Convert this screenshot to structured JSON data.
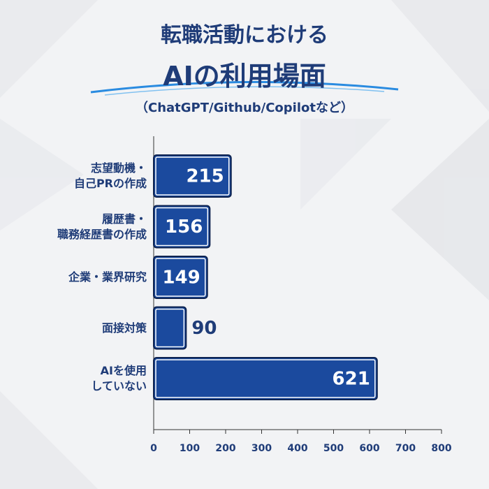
{
  "chart_data": {
    "type": "bar",
    "orientation": "horizontal",
    "title": "転職活動における\nAIの利用場面",
    "subtitle": "（ChatGPT/Github/Copilotなど）",
    "categories": [
      "志望動機・\n自己PRの作成",
      "履歴書・\n職務経歴書の作成",
      "企業・業界研究",
      "面接対策",
      "AIを使用\nしていない"
    ],
    "values": [
      215,
      156,
      149,
      90,
      621
    ],
    "color": "#1b4a9e",
    "xlim": [
      0,
      800
    ],
    "xticks": [
      0,
      100,
      200,
      300,
      400,
      500,
      600,
      700,
      800
    ]
  }
}
